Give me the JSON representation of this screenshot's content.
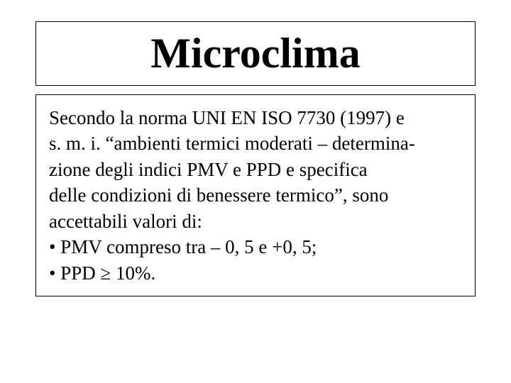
{
  "slide": {
    "title": "Microclima",
    "paragraph_line1": "Secondo la norma UNI EN ISO 7730 (1997) e",
    "paragraph_line2": "s. m. i. “ambienti termici moderati – determina-",
    "paragraph_line3": "zione degli indici PMV e PPD e specifica",
    "paragraph_line4": "delle condizioni di benessere termico”, sono",
    "paragraph_line5": "accettabili valori di:",
    "bullet1": "• PMV compreso tra – 0, 5 e +0, 5;",
    "bullet2": "• PPD ≥ 10%."
  },
  "styling": {
    "background_color": "#ffffff",
    "border_color": "#000000",
    "text_color": "#000000",
    "title_fontsize": 60,
    "body_fontsize": 27,
    "font_family": "Times New Roman",
    "title_fontweight": "bold",
    "body_fontweight": "normal",
    "line_height": 1.35
  }
}
